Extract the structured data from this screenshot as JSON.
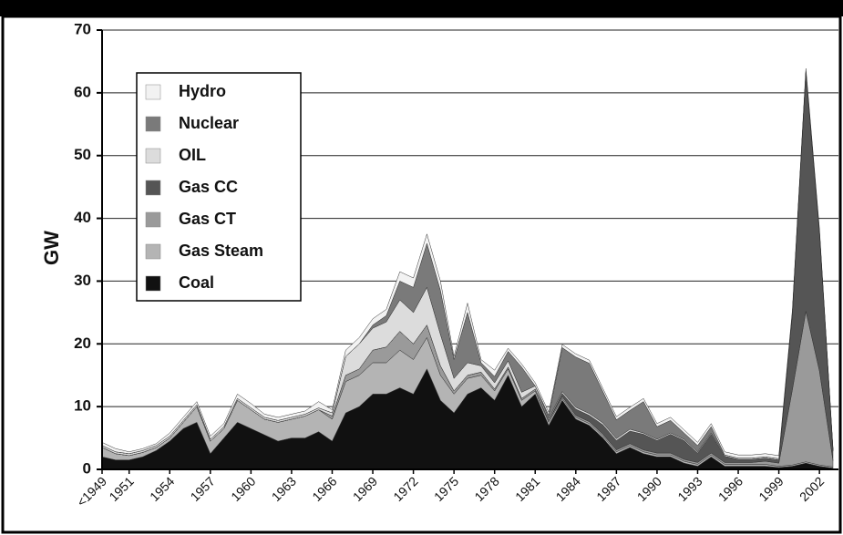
{
  "chart_data": {
    "type": "stacked_area",
    "y_label": "GW",
    "categories": [
      "<1949",
      null,
      "1951",
      null,
      null,
      "1954",
      null,
      null,
      "1957",
      null,
      null,
      "1960",
      null,
      null,
      "1963",
      null,
      null,
      "1966",
      null,
      null,
      "1969",
      null,
      null,
      "1972",
      null,
      null,
      "1975",
      null,
      null,
      "1978",
      null,
      null,
      "1981",
      null,
      null,
      "1984",
      null,
      null,
      "1987",
      null,
      null,
      "1990",
      null,
      null,
      "1993",
      null,
      null,
      "1996",
      null,
      null,
      "1999",
      null,
      null,
      "2002",
      null
    ],
    "ylim": [
      0,
      70
    ],
    "yticks": [
      0,
      10,
      20,
      30,
      40,
      50,
      60,
      70
    ],
    "grid": true,
    "series": [
      {
        "name": "Coal",
        "color": "#111111",
        "values": [
          2,
          1.5,
          1.5,
          2,
          3,
          4.5,
          6.5,
          7.5,
          2.5,
          5,
          7.5,
          6.5,
          5.5,
          4.5,
          5,
          5,
          6,
          4.5,
          9,
          10,
          12,
          12,
          13,
          12,
          16,
          11,
          9,
          12,
          13,
          11,
          15,
          10,
          12,
          7,
          11,
          8,
          7,
          5,
          2.5,
          3.5,
          2.5,
          2,
          2,
          1,
          0.5,
          2,
          0.5,
          0.5,
          0.5,
          0.5,
          0.3,
          0.5,
          1,
          0.5,
          0.2
        ]
      },
      {
        "name": "Gas Steam",
        "color": "#b4b4b4",
        "values": [
          1.5,
          1,
          0.7,
          0.7,
          0.5,
          0.5,
          1,
          2.5,
          2,
          1.5,
          3.5,
          3,
          2.5,
          3,
          3,
          3.5,
          3.5,
          3.5,
          5,
          5,
          5,
          5,
          6,
          5.5,
          5,
          4,
          3,
          2.5,
          2,
          1.5,
          1,
          1,
          0.5,
          0.5,
          0.3,
          0.3,
          0.3,
          0.3,
          0.3,
          0.3,
          0.3,
          0.3,
          0.3,
          0.3,
          0.3,
          0.3,
          0.3,
          0.3,
          0.3,
          0.3,
          0.2,
          0.2,
          0.2,
          0.2,
          0.2
        ]
      },
      {
        "name": "Gas CT",
        "color": "#9a9a9a",
        "values": [
          0,
          0,
          0,
          0,
          0,
          0,
          0,
          0,
          0,
          0,
          0,
          0,
          0,
          0,
          0,
          0,
          0,
          0.5,
          1,
          1,
          2,
          2.5,
          3,
          2.5,
          2,
          1.5,
          0.5,
          0.5,
          0.5,
          0.3,
          0.3,
          0.3,
          0.3,
          0.3,
          0.3,
          0.3,
          0.3,
          0.3,
          0.3,
          0.3,
          0.3,
          0.3,
          0.3,
          0.3,
          0.3,
          0.3,
          0.3,
          0.3,
          0.3,
          0.5,
          0.5,
          12,
          24,
          15,
          1
        ]
      },
      {
        "name": "Gas CC",
        "color": "#555555",
        "values": [
          0,
          0,
          0,
          0,
          0,
          0,
          0,
          0,
          0,
          0,
          0,
          0,
          0,
          0,
          0,
          0,
          0,
          0,
          0,
          0,
          0,
          0,
          0,
          0,
          0,
          0,
          0,
          0,
          0,
          0,
          0,
          0,
          0,
          0,
          0.5,
          1,
          1,
          1.5,
          1.5,
          2,
          2.5,
          2,
          3,
          3,
          1.5,
          3,
          1,
          0.5,
          0.5,
          0.5,
          0.5,
          12,
          38,
          22,
          1.5
        ]
      },
      {
        "name": "OIL",
        "color": "#dcdcdc",
        "values": [
          0.3,
          0.3,
          0.3,
          0.3,
          0.3,
          0.3,
          0.3,
          0.3,
          0.3,
          0.3,
          0.3,
          0.3,
          0.3,
          0.3,
          0.3,
          0.3,
          0.3,
          0.5,
          3,
          4,
          3.5,
          4,
          5,
          5,
          6,
          5,
          2,
          2,
          1,
          1,
          1,
          1,
          0.5,
          0.3,
          0.3,
          0.3,
          0.3,
          0.3,
          0.3,
          0.3,
          0.2,
          0.2,
          0.2,
          0.2,
          0.2,
          0.2,
          0.2,
          0.2,
          0.2,
          0.2,
          0.2,
          0.2,
          0.2,
          0.2,
          0.2
        ]
      },
      {
        "name": "Nuclear",
        "color": "#7a7a7a",
        "values": [
          0,
          0,
          0,
          0,
          0,
          0,
          0,
          0,
          0,
          0,
          0,
          0,
          0,
          0,
          0,
          0,
          0,
          0,
          0,
          0,
          0.5,
          1,
          3,
          4,
          7,
          7,
          3,
          8,
          0.5,
          1,
          1.5,
          4,
          0,
          0.5,
          7,
          8,
          8,
          5,
          3,
          3,
          5,
          2,
          2,
          1,
          1,
          1,
          0,
          0,
          0,
          0,
          0,
          0,
          0,
          0,
          0
        ]
      },
      {
        "name": "Hydro",
        "color": "#f2f2f2",
        "values": [
          0.5,
          0.5,
          0.3,
          0.3,
          0.3,
          0.5,
          0.5,
          0.5,
          0.5,
          0.5,
          0.7,
          0.7,
          0.5,
          0.5,
          0.5,
          0.5,
          1,
          0.5,
          1,
          1,
          1,
          1,
          1.5,
          1.5,
          1.5,
          1.5,
          0.5,
          1.5,
          0.5,
          1,
          0.5,
          0.5,
          0.5,
          0.5,
          0.5,
          0.5,
          0.5,
          0.5,
          0.5,
          0.5,
          0.5,
          0.5,
          0.5,
          0.5,
          0.5,
          0.5,
          0.5,
          0.5,
          0.5,
          0.5,
          0.5,
          0.5,
          0.5,
          0.5,
          0.3
        ]
      }
    ]
  }
}
